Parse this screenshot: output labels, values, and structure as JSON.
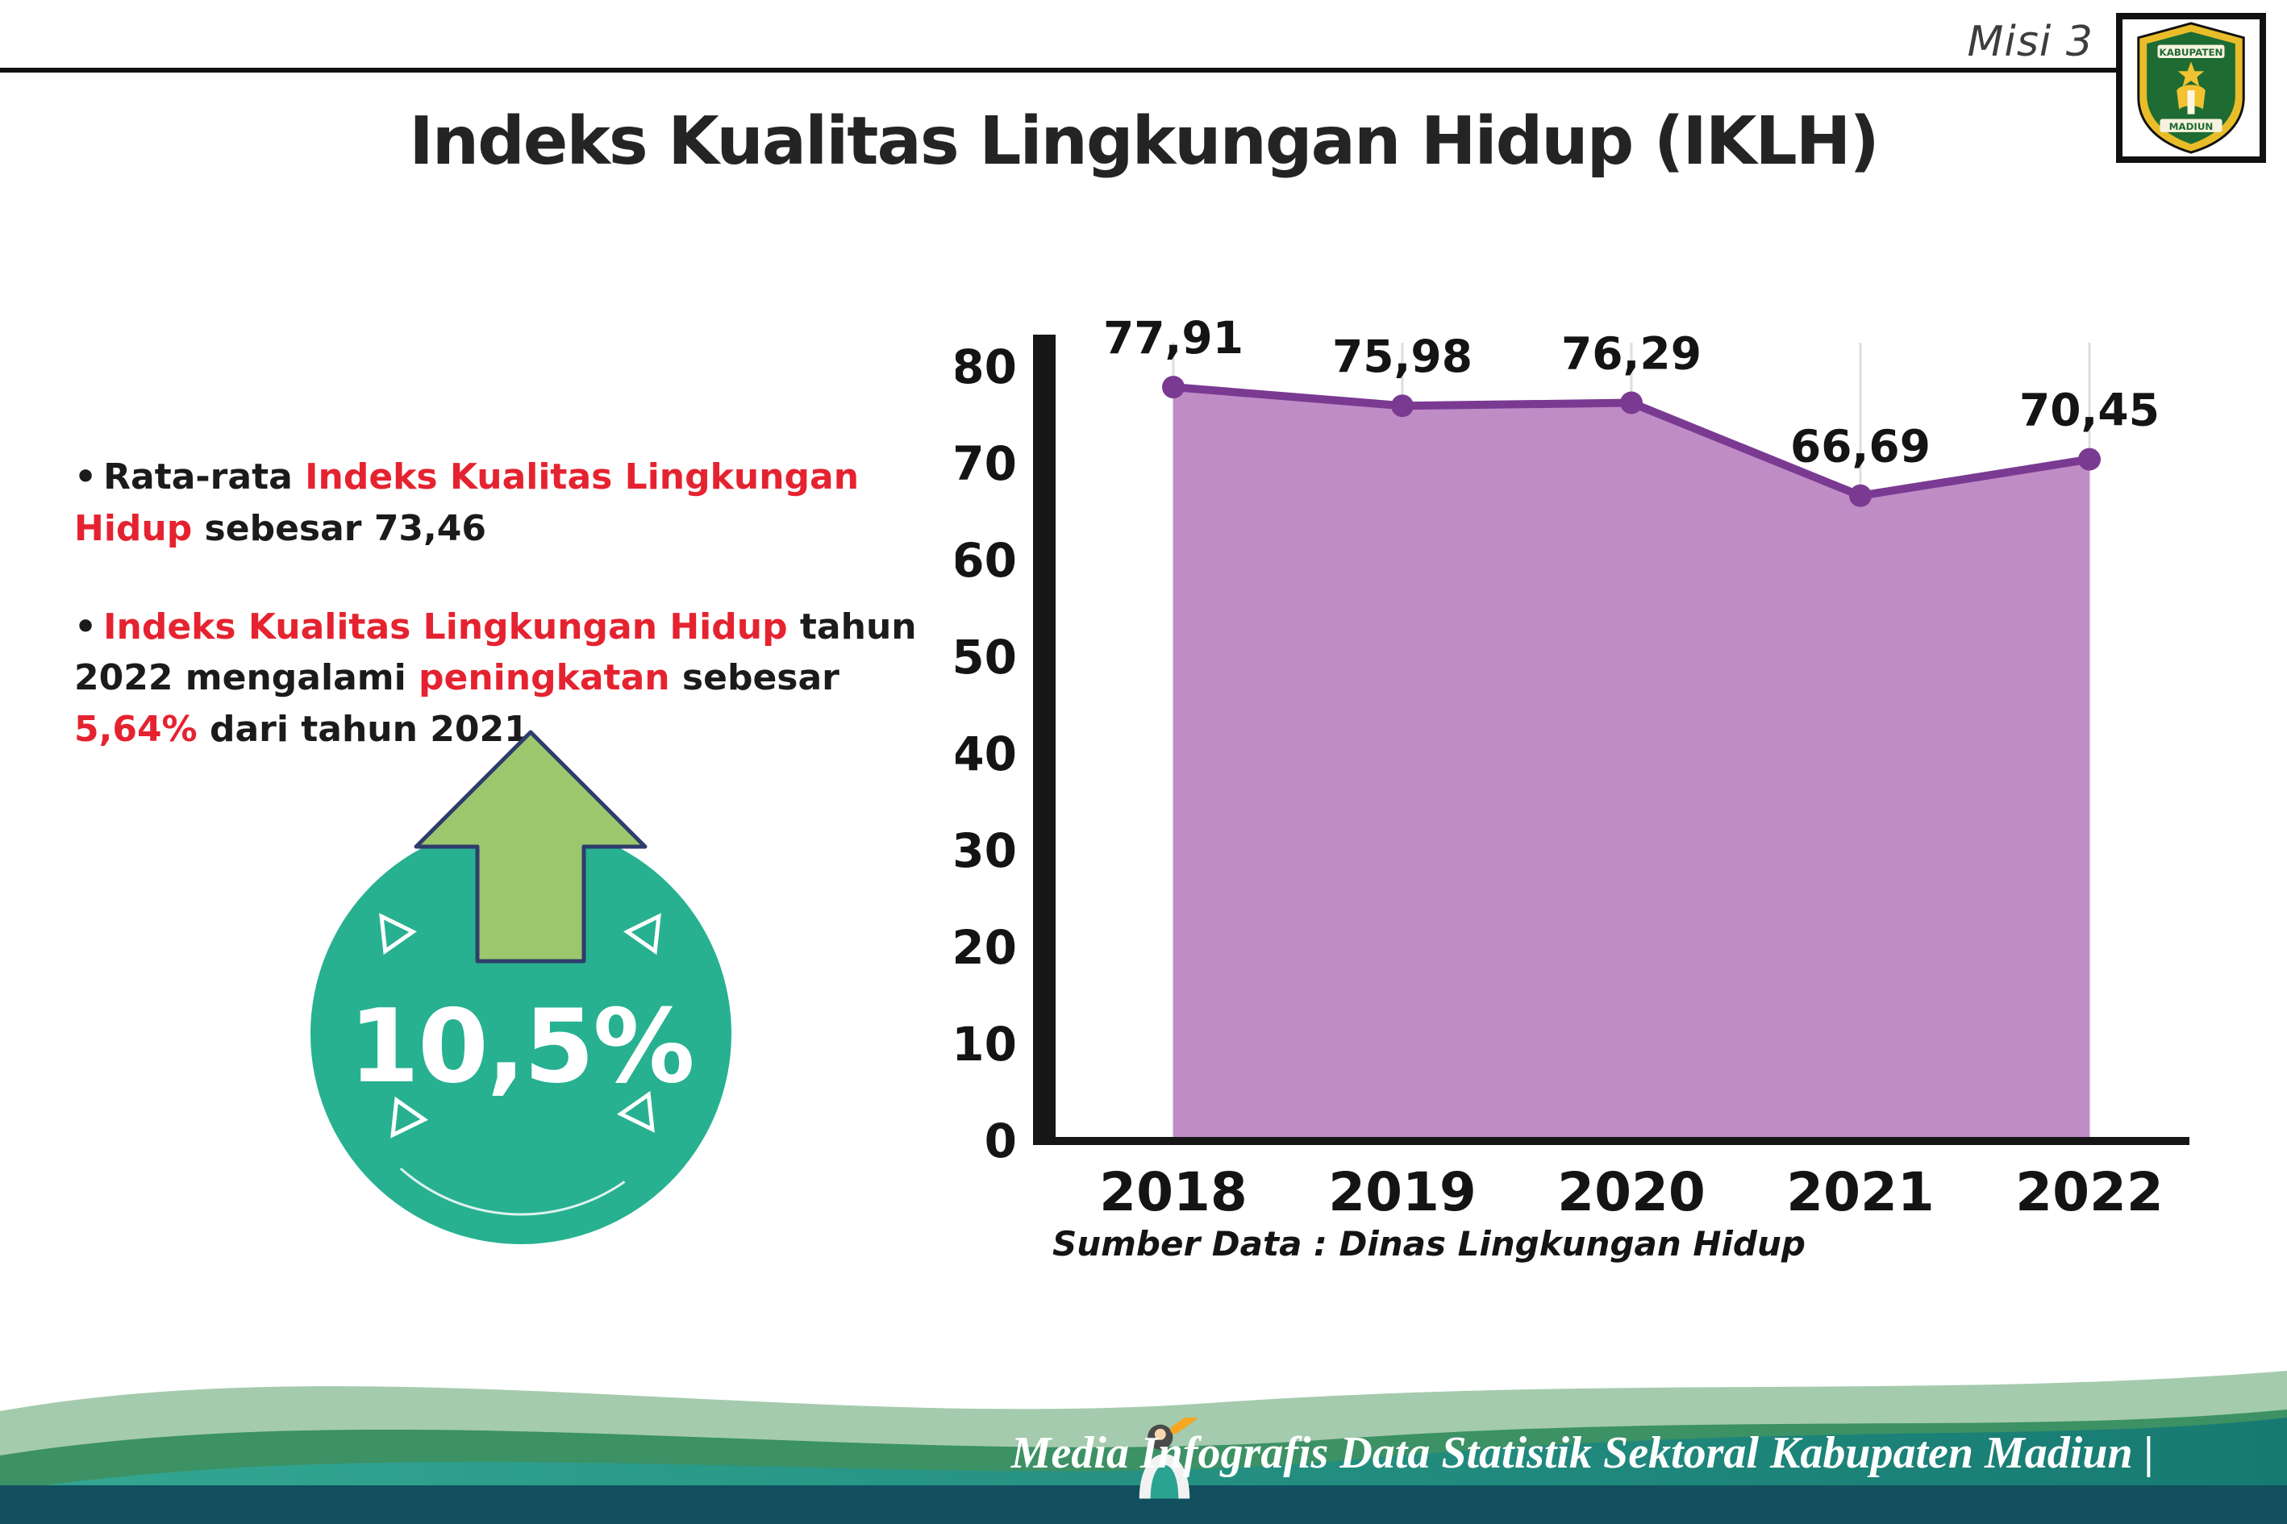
{
  "header": {
    "misi_label": "Misi 3",
    "title": "Indeks Kualitas Lingkungan Hidup (IKLH)",
    "logo_text_top": "KABUPATEN",
    "logo_text_bottom": "MADIUN"
  },
  "bullets": [
    {
      "segments": [
        {
          "text": "Rata-rata ",
          "red": false
        },
        {
          "text": "Indeks Kualitas Lingkungan Hidup",
          "red": true
        },
        {
          "text": " sebesar 73,46",
          "red": false
        }
      ]
    },
    {
      "segments": [
        {
          "text": "Indeks Kualitas Lingkungan Hidup",
          "red": true
        },
        {
          "text": " tahun 2022 mengalami ",
          "red": false
        },
        {
          "text": "peningkatan",
          "red": true
        },
        {
          "text": " sebesar ",
          "red": false
        },
        {
          "text": "5,64%",
          "red": true
        },
        {
          "text": " dari tahun 2021",
          "red": false
        }
      ]
    }
  ],
  "badge": {
    "value": "10,5%"
  },
  "chart_data": {
    "type": "area",
    "categories": [
      "2018",
      "2019",
      "2020",
      "2021",
      "2022"
    ],
    "values": [
      77.91,
      75.98,
      76.29,
      66.69,
      70.45
    ],
    "value_labels": [
      "77,91",
      "75,98",
      "76,29",
      "66,69",
      "70,45"
    ],
    "ylim": [
      0,
      80
    ],
    "yticks": [
      0,
      10,
      20,
      30,
      40,
      50,
      60,
      70,
      80
    ],
    "grid": "vertical",
    "legend": "none",
    "title": "Indeks Kualitas Lingkungan Hidup (IKLH)",
    "xlabel": "",
    "ylabel": "",
    "area_color": "#bf8cc6",
    "line_color": "#7a3a92",
    "source": "Sumber Data : Dinas Lingkungan Hidup"
  },
  "footer": {
    "credit": "Media Infografis Data Statistik Sektoral Kabupaten Madiun |"
  },
  "colors": {
    "accent_red": "#e52330",
    "badge_teal": "#27b191",
    "arrow_green": "#9cc76d",
    "footer_light_green": "#a4cbad",
    "footer_green": "#3c9165",
    "footer_teal": "#1f8577",
    "footer_strip": "#12505f"
  }
}
